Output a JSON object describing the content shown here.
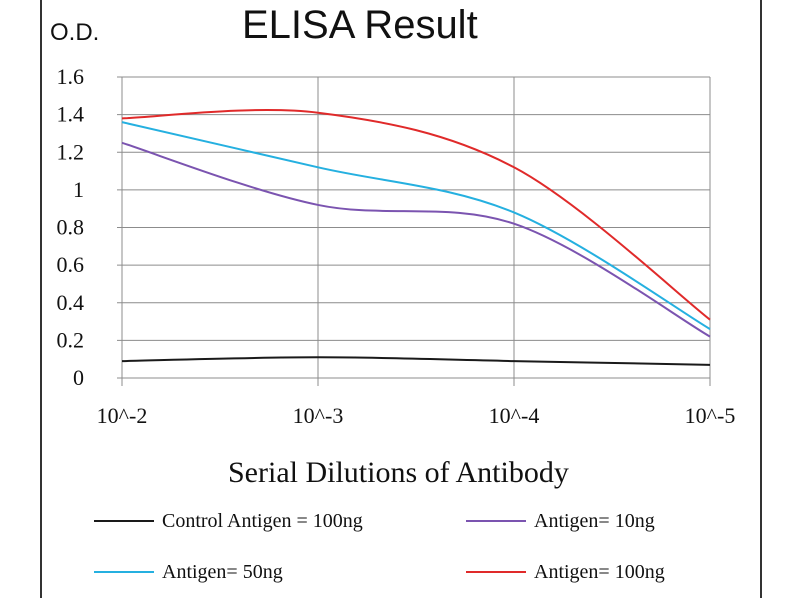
{
  "chart_data": {
    "type": "line",
    "title": "ELISA Result",
    "ylabel": "O.D.",
    "xlabel": "Serial Dilutions  of Antibody",
    "categories": [
      "10^-2",
      "10^-3",
      "10^-4",
      "10^-5"
    ],
    "y_ticks": [
      "0",
      "0.2",
      "0.4",
      "0.6",
      "0.8",
      "1",
      "1.2",
      "1.4",
      "1.6"
    ],
    "ylim": [
      0,
      1.6
    ],
    "grid": true,
    "legend_position": "bottom",
    "series": [
      {
        "name": "Control Antigen = 100ng",
        "color": "#1a1a1a",
        "values": [
          0.09,
          0.11,
          0.09,
          0.07
        ]
      },
      {
        "name": "Antigen= 10ng",
        "color": "#7b54b0",
        "values": [
          1.25,
          0.92,
          0.82,
          0.22
        ]
      },
      {
        "name": "Antigen= 50ng",
        "color": "#25b0e0",
        "values": [
          1.36,
          1.12,
          0.88,
          0.26
        ]
      },
      {
        "name": "Antigen= 100ng",
        "color": "#e02a2a",
        "values": [
          1.38,
          1.41,
          1.12,
          0.31
        ]
      }
    ]
  }
}
